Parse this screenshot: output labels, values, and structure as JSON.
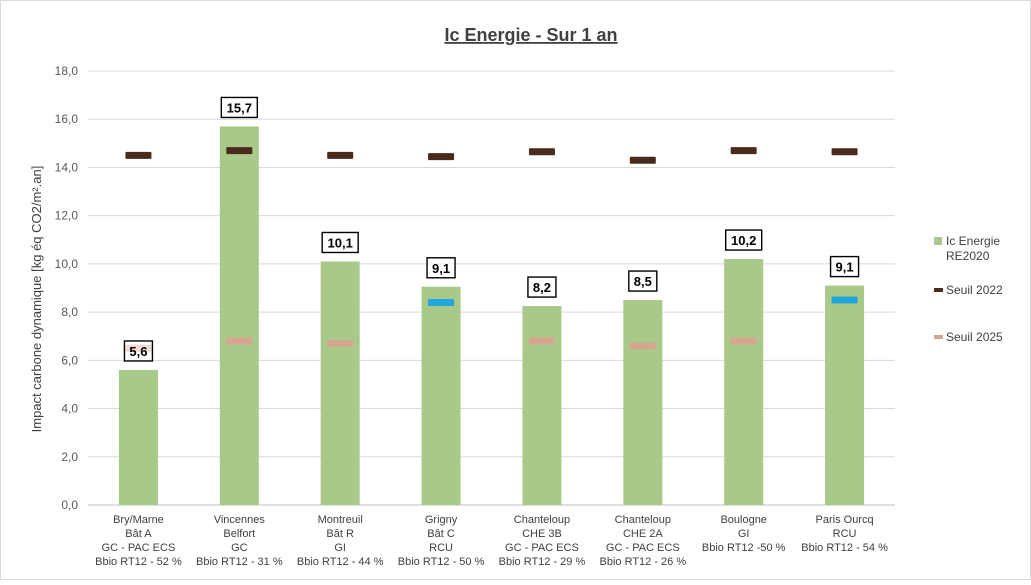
{
  "chart_data": {
    "type": "bar",
    "title": "Ic Energie - Sur 1 an",
    "ylabel": "Impact carbone dynamique [kg éq CO2/m².an]",
    "xlabel": "",
    "ylim": [
      0,
      18
    ],
    "ytick_step": 2,
    "ytick_labels": [
      "0,0",
      "2,0",
      "4,0",
      "6,0",
      "8,0",
      "10,0",
      "12,0",
      "14,0",
      "16,0",
      "18,0"
    ],
    "grid": true,
    "legend_position": "right",
    "categories": [
      [
        "Bry/Marne",
        "Bât A",
        "GC - PAC ECS",
        "Bbio RT12 - 52 %"
      ],
      [
        "Vincennes",
        "Belfort",
        "GC",
        "Bbio RT12 - 31 %"
      ],
      [
        "Montreuil",
        "Bât R",
        "GI",
        "Bbio RT12 - 44 %"
      ],
      [
        "Grigny",
        "Bât C",
        "RCU",
        "Bbio RT12 - 50 %"
      ],
      [
        "Chanteloup",
        "CHE 3B",
        "GC - PAC ECS",
        "Bbio RT12 - 29 %"
      ],
      [
        "Chanteloup",
        "CHE 2A",
        "GC - PAC ECS",
        "Bbio RT12 - 26 %"
      ],
      [
        "Boulogne",
        "",
        "GI",
        "Bbio RT12 -50 %"
      ],
      [
        "Paris Ourcq",
        "",
        "RCU",
        "Bbio RT12 - 54 %"
      ]
    ],
    "series": [
      {
        "name": "Ic Energie RE2020",
        "legend_lines": [
          "Ic Energie",
          "RE2020"
        ],
        "kind": "bar",
        "color": "#a9c98a",
        "values": [
          5.6,
          15.7,
          10.1,
          9.05,
          8.25,
          8.5,
          10.2,
          9.1
        ],
        "data_labels": [
          "5,6",
          "15,7",
          "10,1",
          "9,1",
          "8,2",
          "8,5",
          "10,2",
          "9,1"
        ]
      },
      {
        "name": "Seuil 2022",
        "kind": "marker",
        "color": "#4a2a1a",
        "values": [
          14.5,
          14.7,
          14.5,
          14.45,
          14.65,
          14.3,
          14.7,
          14.65
        ]
      },
      {
        "name": "Seuil 2025",
        "kind": "marker",
        "color": "#d7a68f",
        "values": [
          6.5,
          6.8,
          6.7,
          null,
          6.8,
          6.6,
          6.8,
          null
        ]
      },
      {
        "name": "",
        "kind": "marker",
        "color": "#21a6dd",
        "values": [
          null,
          null,
          null,
          8.4,
          null,
          null,
          null,
          8.5
        ]
      }
    ]
  }
}
